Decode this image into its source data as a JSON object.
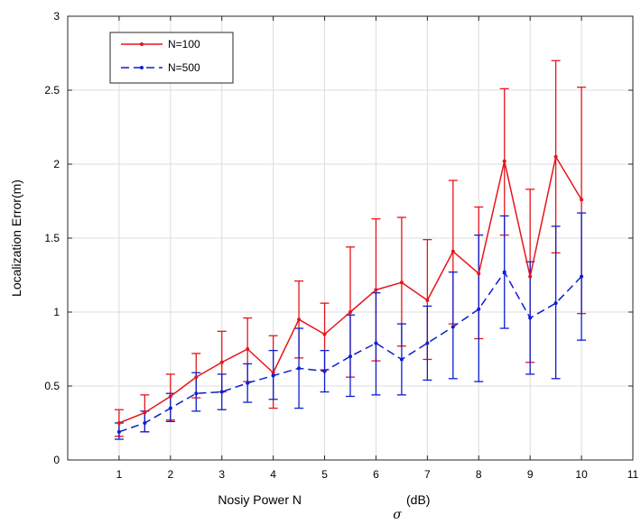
{
  "chart_data": {
    "type": "line",
    "title": "",
    "xlabel": "Nosiy Power N",
    "xlabel_subscript": "σ",
    "xlabel_unit": "(dB)",
    "ylabel": "Localization Error(m)",
    "xlim": [
      0,
      11
    ],
    "ylim": [
      0,
      3
    ],
    "xticks": [
      1,
      2,
      3,
      4,
      5,
      6,
      7,
      8,
      9,
      10,
      11
    ],
    "yticks": [
      0,
      0.5,
      1,
      1.5,
      2,
      2.5,
      3
    ],
    "grid": true,
    "legend_position": "top-left",
    "x": [
      1,
      1.5,
      2,
      2.5,
      3,
      3.5,
      4,
      4.5,
      5,
      5.5,
      6,
      6.5,
      7,
      7.5,
      8,
      8.5,
      9,
      9.5,
      10
    ],
    "series": [
      {
        "name": "N=100",
        "color": "#e8141c",
        "style": "solid",
        "values": [
          0.25,
          0.32,
          0.43,
          0.56,
          0.66,
          0.75,
          0.59,
          0.95,
          0.85,
          1.0,
          1.15,
          1.2,
          1.08,
          1.41,
          1.26,
          2.02,
          1.24,
          2.05,
          1.76
        ],
        "lower": [
          0.16,
          0.19,
          0.27,
          0.42,
          0.46,
          0.53,
          0.35,
          0.69,
          0.61,
          0.56,
          0.67,
          0.77,
          0.68,
          0.92,
          0.82,
          1.52,
          0.66,
          1.4,
          0.99
        ],
        "upper": [
          0.34,
          0.44,
          0.58,
          0.72,
          0.87,
          0.96,
          0.84,
          1.21,
          1.06,
          1.44,
          1.63,
          1.64,
          1.49,
          1.89,
          1.71,
          2.51,
          1.83,
          2.7,
          2.52
        ]
      },
      {
        "name": "N=500",
        "color": "#0b1fcf",
        "style": "dashed",
        "values": [
          0.19,
          0.25,
          0.35,
          0.45,
          0.46,
          0.52,
          0.57,
          0.62,
          0.6,
          0.7,
          0.79,
          0.68,
          0.79,
          0.9,
          1.02,
          1.27,
          0.96,
          1.06,
          1.24
        ],
        "lower": [
          0.14,
          0.19,
          0.26,
          0.33,
          0.34,
          0.39,
          0.41,
          0.35,
          0.46,
          0.43,
          0.44,
          0.44,
          0.54,
          0.55,
          0.53,
          0.89,
          0.58,
          0.55,
          0.81
        ],
        "upper": [
          0.25,
          0.33,
          0.45,
          0.59,
          0.58,
          0.65,
          0.74,
          0.89,
          0.74,
          0.98,
          1.13,
          0.92,
          1.04,
          1.27,
          1.52,
          1.65,
          1.34,
          1.58,
          1.67
        ]
      }
    ]
  }
}
